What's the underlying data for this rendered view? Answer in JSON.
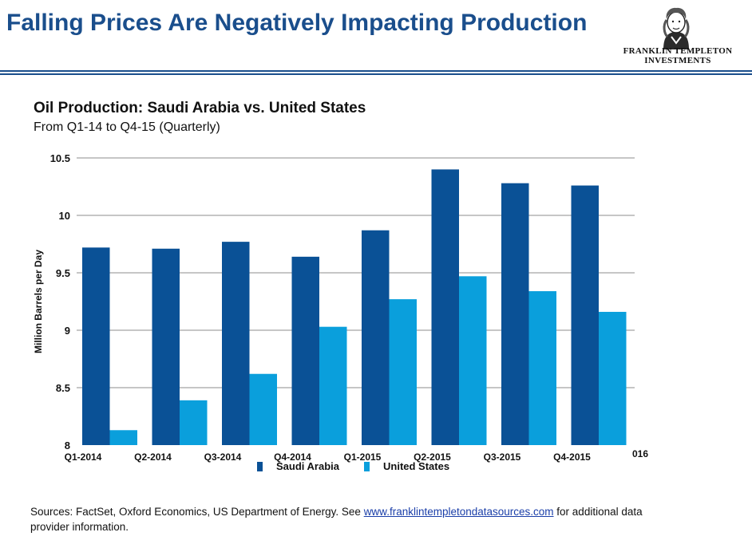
{
  "header": {
    "title": "Falling Prices Are Negatively Impacting Production",
    "logo_line1": "FRANKLIN TEMPLETON",
    "logo_line2": "INVESTMENTS"
  },
  "chart_data": {
    "type": "bar",
    "title": "Oil Production: Saudi Arabia vs. United States",
    "subtitle": "From Q1-14 to Q4-15 (Quarterly)",
    "ylabel": "Million Barrels per Day",
    "xlabel": "",
    "ylim": [
      8,
      10.5
    ],
    "yticks": [
      8,
      8.5,
      9,
      9.5,
      10,
      10.5
    ],
    "ytick_labels": [
      "8",
      "8.5",
      "9",
      "9.5",
      "10",
      "10.5"
    ],
    "categories": [
      "Q1-2014",
      "Q2-2014",
      "Q3-2014",
      "Q4-2014",
      "Q1-2015",
      "Q2-2015",
      "Q3-2015",
      "Q4-2015"
    ],
    "clipped_label": "016",
    "series": [
      {
        "name": "Saudi Arabia",
        "color": "#0a5196",
        "values": [
          9.72,
          9.71,
          9.77,
          9.64,
          9.87,
          10.4,
          10.28,
          10.26
        ]
      },
      {
        "name": "United States",
        "color": "#0a9fdc",
        "values": [
          8.13,
          8.39,
          8.62,
          9.03,
          9.27,
          9.47,
          9.34,
          9.16
        ]
      }
    ],
    "grid": true,
    "legend_position": "bottom"
  },
  "footer": {
    "sources_prefix": "Sources: FactSet, Oxford Economics, US Department of Energy. See ",
    "sources_link": "www.franklintempletondatasources.com",
    "sources_suffix": " for additional data provider information."
  }
}
